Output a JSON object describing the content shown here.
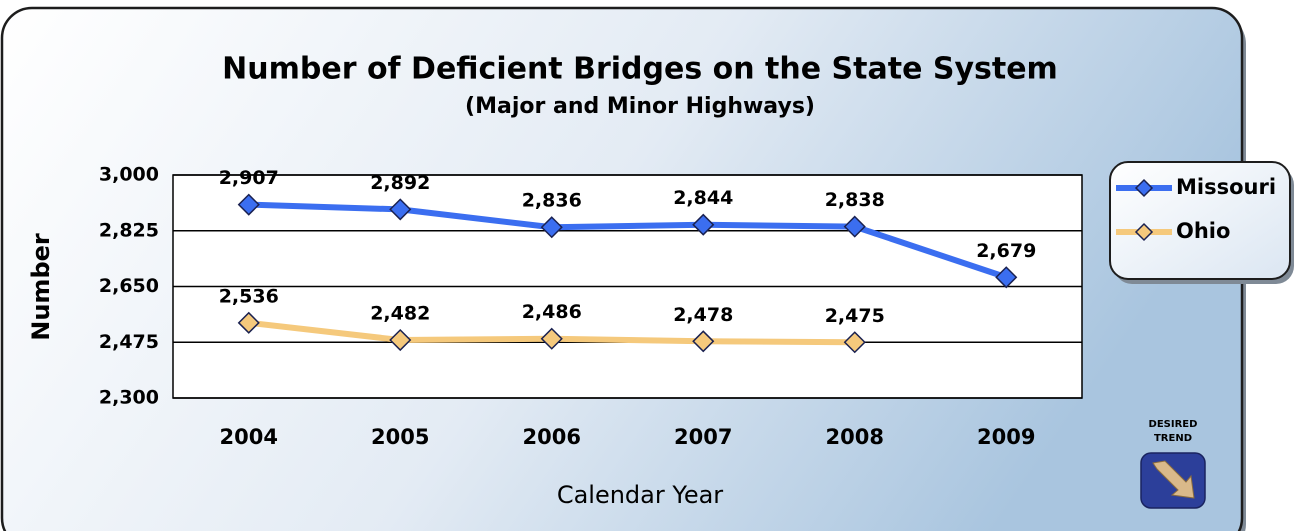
{
  "chart_data": {
    "type": "line",
    "title": "Number of Deficient Bridges on the State System",
    "subtitle": "(Major and Minor Highways)",
    "x_label": "Calendar Year",
    "y_label": "Number",
    "categories": [
      "2004",
      "2005",
      "2006",
      "2007",
      "2008",
      "2009"
    ],
    "series": [
      {
        "name": "Missouri",
        "color": "#3b6ef0",
        "values": [
          2907,
          2892,
          2836,
          2844,
          2838,
          2679
        ],
        "value_labels": [
          "2,907",
          "2,892",
          "2,836",
          "2,844",
          "2,838",
          "2,679"
        ]
      },
      {
        "name": "Ohio",
        "color": "#f5c97c",
        "values": [
          2536,
          2482,
          2486,
          2478,
          2475,
          null
        ],
        "value_labels": [
          "2,536",
          "2,482",
          "2,486",
          "2,478",
          "2,475",
          null
        ]
      }
    ],
    "ylim": [
      2300,
      3000
    ],
    "yticks": [
      {
        "value": 2300,
        "label": "2,300"
      },
      {
        "value": 2475,
        "label": "2,475"
      },
      {
        "value": 2650,
        "label": "2,650"
      },
      {
        "value": 2825,
        "label": "2,825"
      },
      {
        "value": 3000,
        "label": "3,000"
      }
    ],
    "grid": true,
    "legend": "right",
    "annotation": [
      "DESIRED",
      "TREND"
    ]
  }
}
